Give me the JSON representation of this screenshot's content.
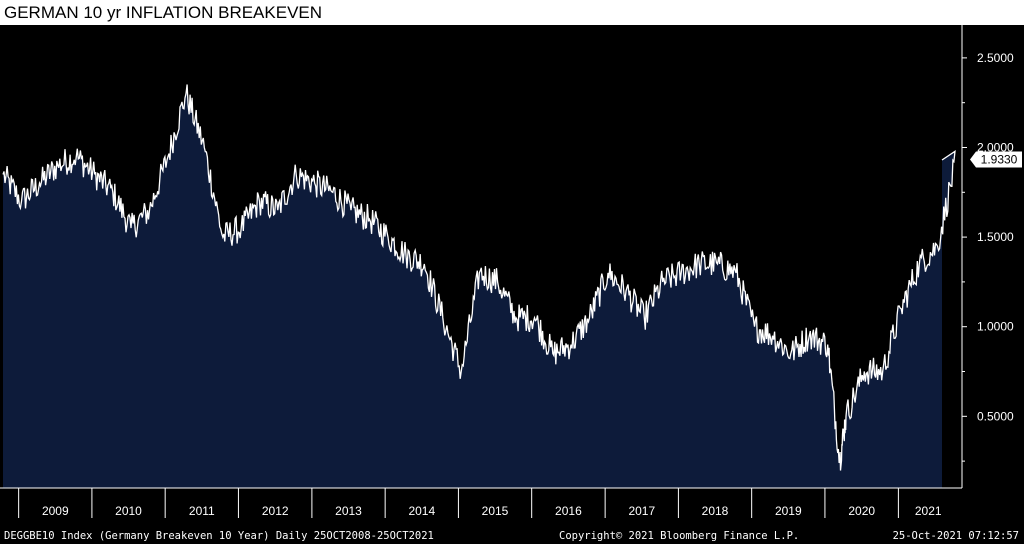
{
  "chart_data": {
    "type": "area",
    "title": "GERMAN 10 yr INFLATION BREAKEVEN",
    "xlabel": "",
    "ylabel": "",
    "x_ticks": [
      "2009",
      "2010",
      "2011",
      "2012",
      "2013",
      "2014",
      "2015",
      "2016",
      "2017",
      "2018",
      "2019",
      "2020",
      "2021"
    ],
    "y_ticks": [
      "0.5000",
      "1.0000",
      "1.5000",
      "2.0000",
      "2.5000"
    ],
    "ylim": [
      0.1,
      2.65
    ],
    "xlim": [
      "2008-10-25",
      "2021-10-25"
    ],
    "last_value_label": "1.9330",
    "colors": {
      "fill": "#0d1b3a",
      "line": "#ffffff",
      "background": "#000000"
    },
    "grid": false,
    "x": [
      "2008-10",
      "2009-01",
      "2009-04",
      "2009-07",
      "2009-10",
      "2010-01",
      "2010-04",
      "2010-07",
      "2010-10",
      "2011-01",
      "2011-04",
      "2011-07",
      "2011-10",
      "2012-01",
      "2012-04",
      "2012-07",
      "2012-10",
      "2013-01",
      "2013-04",
      "2013-07",
      "2013-10",
      "2014-01",
      "2014-04",
      "2014-07",
      "2014-10",
      "2015-01",
      "2015-04",
      "2015-07",
      "2015-10",
      "2016-01",
      "2016-04",
      "2016-07",
      "2016-10",
      "2017-01",
      "2017-04",
      "2017-07",
      "2017-10",
      "2018-01",
      "2018-04",
      "2018-07",
      "2018-10",
      "2019-01",
      "2019-04",
      "2019-07",
      "2019-10",
      "2020-01",
      "2020-03",
      "2020-04",
      "2020-07",
      "2020-10",
      "2021-01",
      "2021-04",
      "2021-07",
      "2021-10"
    ],
    "values": [
      1.85,
      1.7,
      1.8,
      1.9,
      1.95,
      1.85,
      1.75,
      1.55,
      1.65,
      1.95,
      2.3,
      2.0,
      1.5,
      1.55,
      1.7,
      1.65,
      1.85,
      1.8,
      1.75,
      1.65,
      1.6,
      1.5,
      1.4,
      1.35,
      1.05,
      0.75,
      1.3,
      1.25,
      1.05,
      1.05,
      0.85,
      0.9,
      1.05,
      1.3,
      1.2,
      1.05,
      1.25,
      1.3,
      1.35,
      1.35,
      1.3,
      1.0,
      0.95,
      0.85,
      0.95,
      0.9,
      0.25,
      0.5,
      0.75,
      0.75,
      1.1,
      1.35,
      1.45,
      1.93
    ]
  },
  "footer": {
    "left": "DEGGBE10 Index (Germany Breakeven 10 Year)  Daily 25OCT2008-25OCT2021",
    "center": "Copyright© 2021 Bloomberg Finance L.P.",
    "right": "25-Oct-2021 07:12:57"
  }
}
